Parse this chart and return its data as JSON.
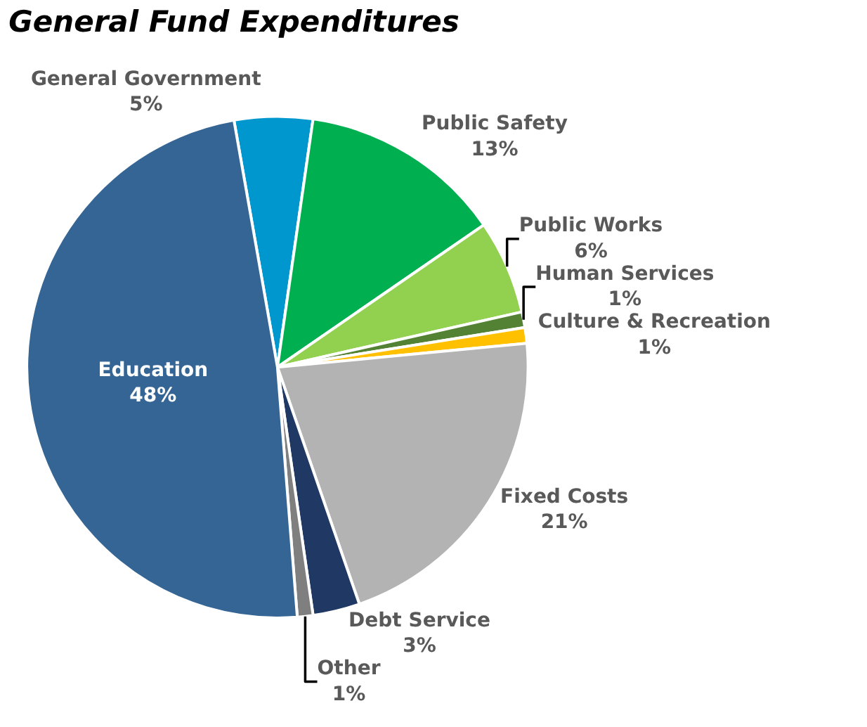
{
  "chart_data": {
    "type": "pie",
    "title": "General Fund Expenditures",
    "categories": [
      "General Government",
      "Public Safety",
      "Public Works",
      "Human Services",
      "Culture & Recreation",
      "Fixed Costs",
      "Debt Service",
      "Other",
      "Education"
    ],
    "values": [
      5,
      13,
      6,
      1,
      1,
      21,
      3,
      1,
      48
    ],
    "colors": [
      "#0097cf",
      "#00b050",
      "#92d050",
      "#548235",
      "#ffc000",
      "#b3b3b3",
      "#1f3864",
      "#7f7f7f",
      "#346594"
    ],
    "value_labels": [
      "5%",
      "13%",
      "6%",
      "1%",
      "1%",
      "21%",
      "3%",
      "1%",
      "48%"
    ],
    "legend": false
  }
}
